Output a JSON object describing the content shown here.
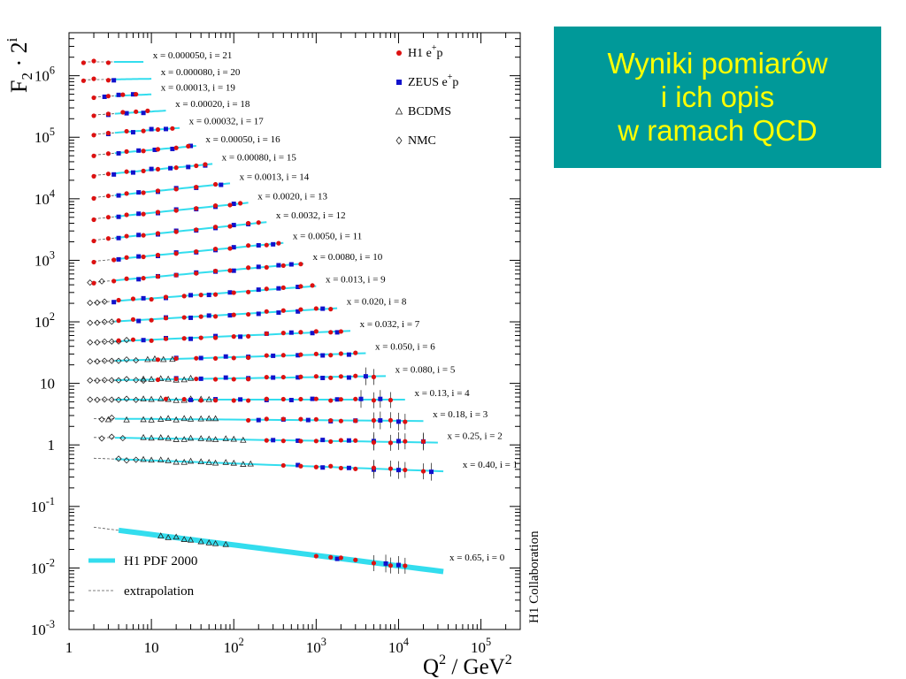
{
  "slide": {
    "title_lines": [
      "Wyniki pomiarów",
      "i ich opis",
      "w ramach QCD"
    ]
  },
  "colors": {
    "background": "#ffffff",
    "title_box": "#009999",
    "title_text": "#ffff00",
    "fit_curve": "#33ddee",
    "h1_marker": "#dd1111",
    "zeus_marker": "#1111cc"
  },
  "chart_data": {
    "type": "scatter",
    "ylabel_base": "F",
    "ylabel_sub": "2",
    "ylabel_sup": "i",
    "ylabel_mid": " · 2",
    "xlabel_base": "Q",
    "xlabel_sup1": "2",
    "xlabel_mid": " / GeV",
    "xlabel_sup2": "2",
    "x_scale": "log",
    "y_scale": "log",
    "xlim": [
      1,
      300000
    ],
    "ylim": [
      0.001,
      5000000
    ],
    "x_ticks": [
      {
        "value": 1,
        "base": "1",
        "exp": ""
      },
      {
        "value": 10,
        "base": "10",
        "exp": ""
      },
      {
        "value": 100,
        "base": "10",
        "exp": "2"
      },
      {
        "value": 1000,
        "base": "10",
        "exp": "3"
      },
      {
        "value": 10000,
        "base": "10",
        "exp": "4"
      },
      {
        "value": 100000,
        "base": "10",
        "exp": "5"
      }
    ],
    "y_ticks": [
      {
        "value": 0.001,
        "base": "10",
        "exp": "-3"
      },
      {
        "value": 0.01,
        "base": "10",
        "exp": "-2"
      },
      {
        "value": 0.1,
        "base": "10",
        "exp": "-1"
      },
      {
        "value": 1,
        "base": "1",
        "exp": ""
      },
      {
        "value": 10,
        "base": "10",
        "exp": ""
      },
      {
        "value": 100,
        "base": "10",
        "exp": "2"
      },
      {
        "value": 1000,
        "base": "10",
        "exp": "3"
      },
      {
        "value": 10000,
        "base": "10",
        "exp": "4"
      },
      {
        "value": 100000,
        "base": "10",
        "exp": "5"
      },
      {
        "value": 1000000,
        "base": "10",
        "exp": "6"
      }
    ],
    "legend": [
      {
        "name": "H1 e",
        "sup": "+",
        "tail": "p",
        "marker": "circle"
      },
      {
        "name": "ZEUS e",
        "sup": "+",
        "tail": "p",
        "marker": "square"
      },
      {
        "name": "BCDMS",
        "sup": "",
        "tail": "",
        "marker": "triangle"
      },
      {
        "name": "NMC",
        "sup": "",
        "tail": "",
        "marker": "diamond"
      }
    ],
    "legend_bottom": [
      {
        "name": "H1 PDF 2000",
        "style": "thick-line"
      },
      {
        "name": "extrapolation",
        "style": "dashed-line"
      }
    ],
    "side_label": "H1 Collaboration",
    "bins": [
      {
        "label": "x = 0.000050, i = 21",
        "i": 21,
        "f2": 0.8,
        "slope": 0.0,
        "q2": [
          1.5,
          8
        ],
        "h1": [
          1.5,
          2,
          3
        ],
        "zeus": [],
        "bcdms": [],
        "nmc": []
      },
      {
        "label": "x = 0.000080, i = 20",
        "i": 20,
        "f2": 0.85,
        "slope": 0.02,
        "q2": [
          1.5,
          10
        ],
        "h1": [
          1.5,
          2,
          3
        ],
        "zeus": [
          3.5
        ],
        "bcdms": [],
        "nmc": []
      },
      {
        "label": "x = 0.00013, i = 19",
        "i": 19,
        "f2": 0.95,
        "slope": 0.06,
        "q2": [
          2,
          10
        ],
        "h1": [
          2,
          3,
          4.5,
          6.5
        ],
        "zeus": [
          2.7,
          4,
          6
        ],
        "bcdms": [],
        "nmc": []
      },
      {
        "label": "x = 0.00020, i = 18",
        "i": 18,
        "f2": 1.0,
        "slope": 0.08,
        "q2": [
          2,
          15
        ],
        "h1": [
          2,
          3,
          4.5,
          6.5,
          9
        ],
        "zeus": [
          3,
          5,
          8
        ],
        "bcdms": [],
        "nmc": []
      },
      {
        "label": "x = 0.00032, i = 17",
        "i": 17,
        "f2": 1.0,
        "slope": 0.1,
        "q2": [
          2,
          22
        ],
        "h1": [
          2,
          3,
          5,
          8,
          12,
          18
        ],
        "zeus": [
          3,
          6,
          10,
          15
        ],
        "bcdms": [],
        "nmc": []
      },
      {
        "label": "x = 0.00050, i = 16",
        "i": 16,
        "f2": 0.95,
        "slope": 0.12,
        "q2": [
          2,
          35
        ],
        "h1": [
          2,
          3,
          5,
          8,
          12,
          20,
          28
        ],
        "zeus": [
          4,
          7,
          11,
          18,
          30
        ],
        "bcdms": [],
        "nmc": []
      },
      {
        "label": "x = 0.00080, i = 15",
        "i": 15,
        "f2": 0.9,
        "slope": 0.13,
        "q2": [
          2,
          55
        ],
        "h1": [
          2,
          3,
          5,
          8,
          12,
          20,
          35,
          45
        ],
        "zeus": [
          3.5,
          6,
          10,
          17,
          28,
          45
        ],
        "bcdms": [],
        "nmc": []
      },
      {
        "label": "x = 0.0013, i = 14",
        "i": 14,
        "f2": 0.8,
        "slope": 0.14,
        "q2": [
          2,
          90
        ],
        "h1": [
          2,
          3,
          5,
          8,
          12,
          20,
          35,
          60
        ],
        "zeus": [
          4,
          7,
          12,
          20,
          35,
          70
        ],
        "bcdms": [],
        "nmc": []
      },
      {
        "label": "x = 0.0020, i = 13",
        "i": 13,
        "f2": 0.72,
        "slope": 0.14,
        "q2": [
          2,
          150
        ],
        "h1": [
          2,
          3,
          5,
          8,
          12,
          20,
          35,
          60,
          90,
          120
        ],
        "zeus": [
          4,
          7,
          12,
          20,
          35,
          60,
          100
        ],
        "bcdms": [],
        "nmc": []
      },
      {
        "label": "x = 0.0032, i = 12",
        "i": 12,
        "f2": 0.65,
        "slope": 0.14,
        "q2": [
          2,
          250
        ],
        "h1": [
          2,
          3,
          5,
          8,
          12,
          20,
          35,
          60,
          90,
          150,
          200
        ],
        "zeus": [
          4,
          7,
          12,
          20,
          35,
          60,
          100,
          150
        ],
        "bcdms": [],
        "nmc": []
      },
      {
        "label": "x = 0.0050, i = 11",
        "i": 11,
        "f2": 0.58,
        "slope": 0.13,
        "q2": [
          2,
          400
        ],
        "h1": [
          2,
          3.5,
          5,
          8,
          12,
          20,
          35,
          60,
          90,
          150,
          250,
          350
        ],
        "zeus": [
          4,
          7,
          12,
          20,
          35,
          60,
          100,
          200,
          300
        ],
        "bcdms": [],
        "nmc": []
      },
      {
        "label": "x = 0.0080, i = 10",
        "i": 10,
        "f2": 0.52,
        "slope": 0.12,
        "q2": [
          2,
          700
        ],
        "h1": [
          2,
          3.5,
          5,
          8,
          12,
          20,
          35,
          60,
          90,
          150,
          250,
          400,
          650
        ],
        "zeus": [
          7,
          12,
          20,
          35,
          60,
          100,
          200,
          350,
          500
        ],
        "bcdms": [],
        "nmc": [
          1.8,
          2.5
        ]
      },
      {
        "label": "x = 0.013, i = 9",
        "i": 9,
        "f2": 0.47,
        "slope": 0.1,
        "q2": [
          2,
          1000
        ],
        "h1": [
          4,
          6,
          10,
          15,
          25,
          40,
          60,
          100,
          150,
          250,
          400,
          650,
          900
        ],
        "zeus": [
          3.5,
          8,
          15,
          30,
          50,
          90,
          200,
          350,
          600
        ],
        "bcdms": [],
        "nmc": [
          1.8,
          2.2,
          2.7
        ]
      },
      {
        "label": "x = 0.020, i = 8",
        "i": 8,
        "f2": 0.43,
        "slope": 0.08,
        "q2": [
          2,
          1800
        ],
        "h1": [
          4,
          6,
          10,
          15,
          25,
          40,
          60,
          100,
          150,
          250,
          400,
          650,
          1000,
          1500
        ],
        "zeus": [
          7,
          15,
          30,
          50,
          90,
          200,
          350,
          600,
          1200
        ],
        "bcdms": [],
        "nmc": [
          1.8,
          2.2,
          2.7,
          3.3
        ]
      },
      {
        "label": "x = 0.032, i = 7",
        "i": 7,
        "f2": 0.4,
        "slope": 0.06,
        "q2": [
          2,
          2600
        ],
        "h1": [
          4,
          6,
          10,
          15,
          25,
          40,
          60,
          100,
          150,
          250,
          400,
          650,
          1000,
          1500,
          2000
        ],
        "zeus": [
          8,
          15,
          30,
          60,
          120,
          250,
          500,
          900,
          1800
        ],
        "bcdms": [],
        "nmc": [
          1.8,
          2.2,
          2.7,
          3.3,
          4,
          5
        ]
      },
      {
        "label": "x = 0.050, i = 6",
        "i": 6,
        "f2": 0.38,
        "slope": 0.04,
        "q2": [
          2,
          4000
        ],
        "h1": [
          12,
          20,
          35,
          60,
          100,
          150,
          250,
          400,
          650,
          1000,
          1500,
          2000,
          3000
        ],
        "zeus": [
          20,
          40,
          80,
          150,
          300,
          600,
          1200,
          2500
        ],
        "bcdms": [
          9,
          11,
          14,
          18
        ],
        "nmc": [
          1.8,
          2.2,
          2.7,
          3.3,
          4,
          5,
          6.5
        ]
      },
      {
        "label": "x = 0.080, i = 5",
        "i": 5,
        "f2": 0.36,
        "slope": 0.02,
        "q2": [
          2,
          7000
        ],
        "h1": [
          12,
          20,
          35,
          60,
          100,
          150,
          250,
          400,
          650,
          1000,
          1500,
          2000,
          3000,
          5000
        ],
        "zeus": [
          20,
          40,
          80,
          150,
          300,
          600,
          1200,
          2500,
          4000
        ],
        "bcdms": [
          8,
          10,
          13,
          16,
          20,
          25,
          30
        ],
        "nmc": [
          1.8,
          2.2,
          2.7,
          3.3,
          4,
          5,
          6.5,
          8
        ]
      },
      {
        "label": "x = 0.13, i = 4",
        "i": 4,
        "f2": 0.34,
        "slope": 0.0,
        "q2": [
          2,
          12000
        ],
        "h1": [
          15,
          25,
          40,
          60,
          100,
          150,
          250,
          400,
          650,
          1000,
          1500,
          2000,
          3000,
          5000,
          8000
        ],
        "zeus": [
          30,
          60,
          120,
          250,
          500,
          900,
          1800,
          3500,
          6000
        ],
        "bcdms": [
          8,
          10,
          13,
          16,
          20,
          25,
          30,
          40,
          50
        ],
        "nmc": [
          1.8,
          2.2,
          2.7,
          3.3,
          4,
          5,
          6.5
        ]
      },
      {
        "label": "x = 0.18, i = 3",
        "i": 3,
        "f2": 0.33,
        "slope": -0.01,
        "q2": [
          2,
          20000
        ],
        "h1": [
          150,
          250,
          400,
          650,
          1000,
          1500,
          2000,
          3000,
          5000,
          8000,
          12000
        ],
        "zeus": [
          200,
          400,
          800,
          1500,
          3000,
          6000,
          10000
        ],
        "bcdms": [
          3,
          5,
          8,
          10,
          13,
          16,
          20,
          25,
          30,
          40,
          50,
          60
        ],
        "nmc": [
          2.5,
          3.3
        ]
      },
      {
        "label": "x = 0.25, i = 2",
        "i": 2,
        "f2": 0.32,
        "slope": -0.02,
        "q2": [
          2,
          30000
        ],
        "h1": [
          250,
          400,
          650,
          1000,
          1500,
          2000,
          3000,
          5000,
          8000,
          12000,
          20000
        ],
        "zeus": [
          300,
          600,
          1200,
          2500,
          5000,
          10000,
          20000
        ],
        "bcdms": [
          8,
          10,
          13,
          16,
          20,
          25,
          30,
          40,
          50,
          60,
          80,
          100,
          130
        ],
        "nmc": [
          2.5,
          3.3,
          4.5
        ]
      },
      {
        "label": "x = 0.40, i = 1",
        "i": 1,
        "f2": 0.28,
        "slope": -0.05,
        "q2": [
          2,
          35000
        ],
        "h1": [
          400,
          650,
          1000,
          1500,
          2000,
          3000,
          5000,
          8000,
          12000,
          20000
        ],
        "zeus": [
          600,
          1200,
          2500,
          5000,
          10000,
          25000
        ],
        "bcdms": [
          8,
          10,
          13,
          16,
          20,
          25,
          30,
          40,
          50,
          60,
          80,
          100,
          130,
          160
        ],
        "nmc": [
          4,
          5,
          6.5
        ]
      },
      {
        "label": "x = 0.65, i = 0",
        "i": 0,
        "f2": 0.035,
        "slope": -0.17,
        "q2": [
          2,
          35000
        ],
        "h1": [
          1000,
          1500,
          2000,
          3000,
          5000,
          8000,
          12000
        ],
        "zeus": [
          1800,
          7000,
          10000
        ],
        "bcdms": [
          13,
          16,
          20,
          25,
          30,
          40,
          50,
          60,
          80
        ],
        "nmc": []
      }
    ]
  }
}
